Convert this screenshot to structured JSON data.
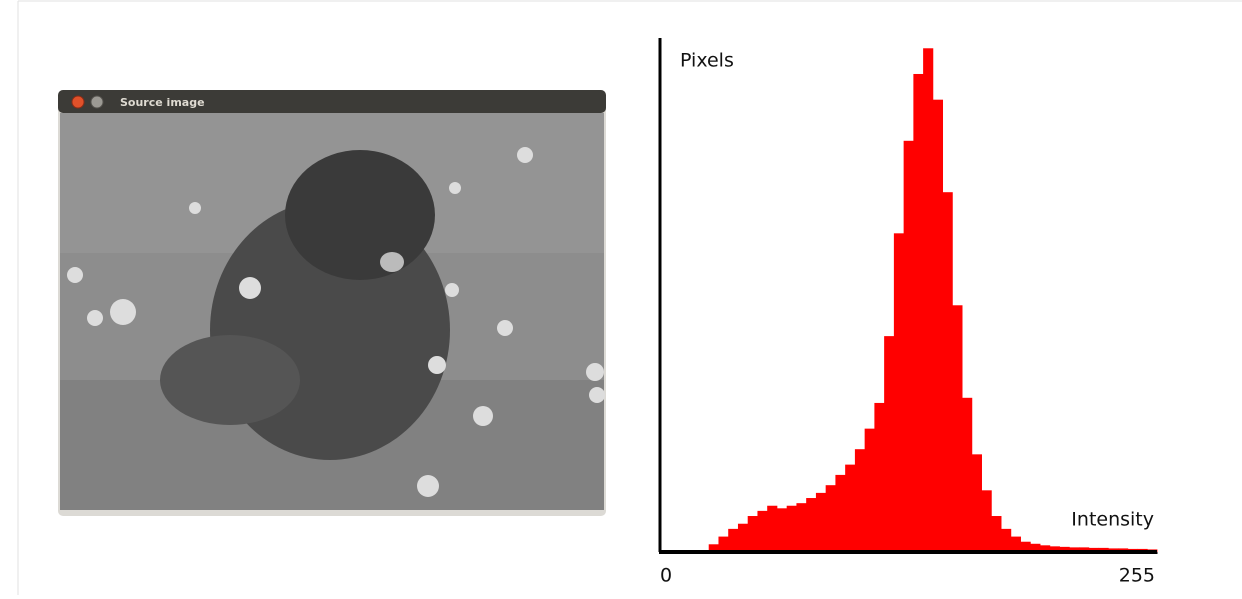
{
  "window": {
    "title": "Source image"
  },
  "chart_data": {
    "type": "histogram",
    "color": "#ff0000",
    "y_label": "Pixels",
    "x_label": "Intensity",
    "bins": [
      0,
      5,
      10,
      15,
      20,
      25,
      30,
      35,
      40,
      45,
      50,
      55,
      60,
      65,
      70,
      75,
      80,
      85,
      90,
      95,
      100,
      105,
      110,
      115,
      120,
      125,
      130,
      135,
      140,
      145,
      150,
      155,
      160,
      165,
      170,
      175,
      180,
      185,
      190,
      195,
      200,
      205,
      210,
      215,
      220,
      225,
      230,
      235,
      240,
      245,
      250,
      255
    ],
    "values": [
      0,
      0,
      0,
      0,
      0,
      1.5,
      3,
      4.5,
      5.5,
      7,
      8,
      9,
      8.5,
      9,
      9.5,
      10.5,
      11.5,
      13,
      15,
      17,
      20,
      24,
      29,
      42,
      62,
      80,
      93,
      98,
      88,
      70,
      48,
      30,
      19,
      12,
      7,
      4.5,
      3,
      2,
      1.6,
      1.3,
      1.1,
      1,
      0.9,
      0.9,
      0.8,
      0.8,
      0.7,
      0.7,
      0.6,
      0.6,
      0.5
    ],
    "xlim": [
      0,
      255
    ],
    "xticks": [
      0,
      255
    ],
    "ylim": [
      0,
      100
    ]
  }
}
